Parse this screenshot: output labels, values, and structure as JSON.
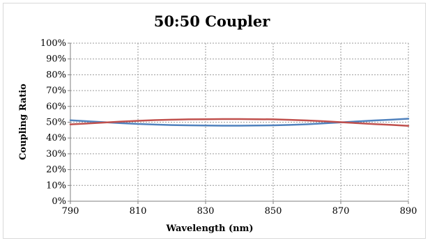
{
  "chart_data": {
    "type": "line",
    "title": "50:50 Coupler",
    "xlabel": "Wavelength (nm)",
    "ylabel": "Coupling Ratio",
    "xlim": [
      790,
      890
    ],
    "ylim": [
      0,
      100
    ],
    "x_ticks": [
      790,
      810,
      830,
      850,
      870,
      890
    ],
    "x_tick_labels": [
      "790",
      "810",
      "830",
      "850",
      "870",
      "890"
    ],
    "y_ticks": [
      0,
      10,
      20,
      30,
      40,
      50,
      60,
      70,
      80,
      90,
      100
    ],
    "y_tick_labels": [
      "0%",
      "10%",
      "20%",
      "30%",
      "40%",
      "50%",
      "60%",
      "70%",
      "80%",
      "90%",
      "100%"
    ],
    "grid": true,
    "legend": "none",
    "x": [
      790,
      795,
      800,
      805,
      810,
      815,
      820,
      825,
      830,
      835,
      840,
      845,
      850,
      855,
      860,
      865,
      870,
      875,
      880,
      885,
      890
    ],
    "series": [
      {
        "color": "#4f81bd",
        "values": [
          51.2,
          50.6,
          50.0,
          49.4,
          48.9,
          48.5,
          48.2,
          48.0,
          47.9,
          47.8,
          47.8,
          47.9,
          48.0,
          48.3,
          48.7,
          49.3,
          49.9,
          50.5,
          51.1,
          51.6,
          52.2
        ]
      },
      {
        "color": "#c0504d",
        "values": [
          48.6,
          49.2,
          49.8,
          50.4,
          50.9,
          51.3,
          51.6,
          51.8,
          51.9,
          52.0,
          52.0,
          51.9,
          51.8,
          51.5,
          51.1,
          50.6,
          50.0,
          49.4,
          48.8,
          48.3,
          47.7
        ]
      }
    ]
  }
}
